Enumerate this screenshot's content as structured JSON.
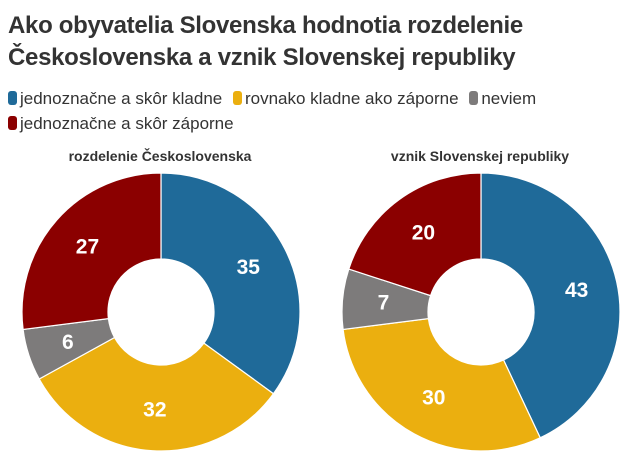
{
  "title": "Ako obyvatelia Slovenska hodnotia rozdelenie Československa a vznik Slovenskej republiky",
  "legend": [
    {
      "label": "jednoznačne a skôr kladne",
      "color": "#1f6a99"
    },
    {
      "label": "rovnako kladne ako záporne",
      "color": "#ebaf0f"
    },
    {
      "label": "neviem",
      "color": "#7d7b7b"
    },
    {
      "label": "jednoznačne a skôr záporne",
      "color": "#8b0000"
    }
  ],
  "chart_data": [
    {
      "type": "pie",
      "subtype": "donut",
      "title": "rozdelenie Československa",
      "categories": [
        "jednoznačne a skôr kladne",
        "rovnako kladne ako záporne",
        "neviem",
        "jednoznačne a skôr záporne"
      ],
      "values": [
        35,
        32,
        6,
        27
      ],
      "colors": [
        "#1f6a99",
        "#ebaf0f",
        "#7d7b7b",
        "#8b0000"
      ],
      "start_angle": "12 o'clock, clockwise",
      "legend_position": "top"
    },
    {
      "type": "pie",
      "subtype": "donut",
      "title": "vznik Slovenskej republiky",
      "categories": [
        "jednoznačne a skôr kladne",
        "rovnako kladne ako záporne",
        "neviem",
        "jednoznačne a skôr záporne"
      ],
      "values": [
        43,
        30,
        7,
        20
      ],
      "colors": [
        "#1f6a99",
        "#ebaf0f",
        "#7d7b7b",
        "#8b0000"
      ],
      "start_angle": "12 o'clock, clockwise",
      "legend_position": "top"
    }
  ]
}
